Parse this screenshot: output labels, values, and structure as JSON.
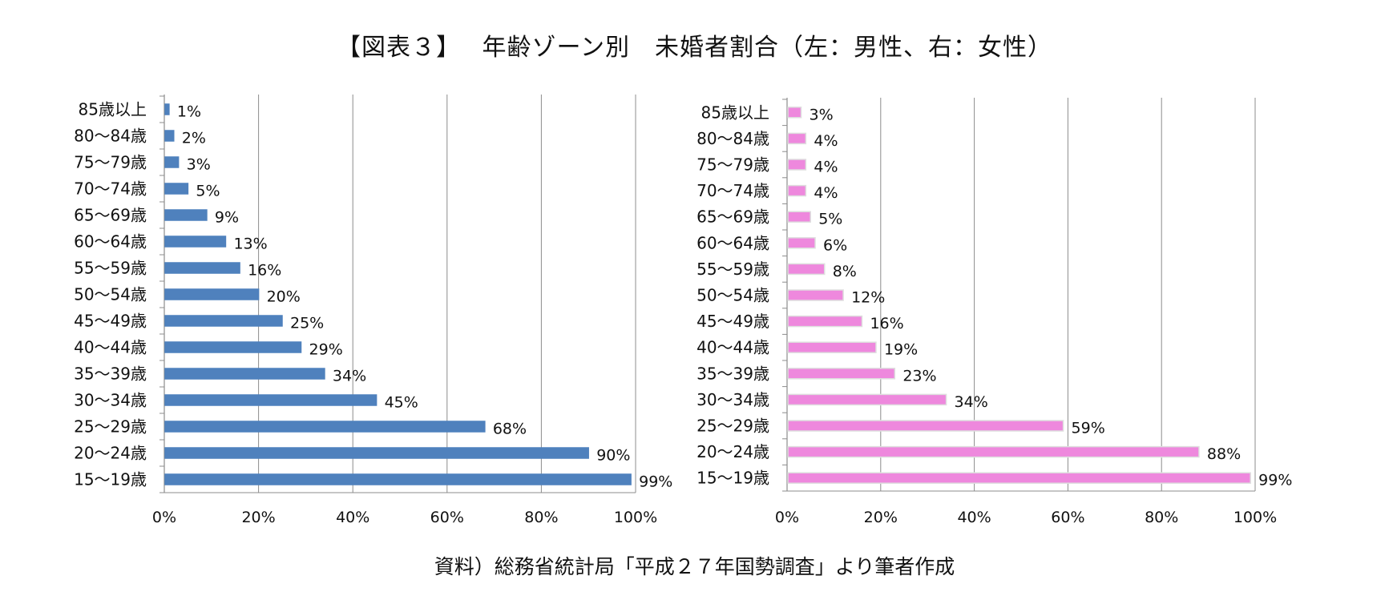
{
  "title": "【図表３】　 年齢ゾーン別　未婚者割合（左：男性、右：女性）",
  "source": "資料）総務省統計局「平成２７年国勢調査」より筆者作成",
  "chart_data": [
    {
      "type": "bar",
      "orientation": "horizontal",
      "categories": [
        "85歳以上",
        "80〜84歳",
        "75〜79歳",
        "70〜74歳",
        "65〜69歳",
        "60〜64歳",
        "55〜59歳",
        "50〜54歳",
        "45〜49歳",
        "40〜44歳",
        "35〜39歳",
        "30〜34歳",
        "25〜29歳",
        "20〜24歳",
        "15〜19歳"
      ],
      "values": [
        1,
        2,
        3,
        5,
        9,
        13,
        16,
        20,
        25,
        29,
        34,
        45,
        68,
        90,
        99
      ],
      "value_labels": [
        "1%",
        "2%",
        "3%",
        "5%",
        "9%",
        "13%",
        "16%",
        "20%",
        "25%",
        "29%",
        "34%",
        "45%",
        "68%",
        "90%",
        "99%"
      ],
      "xlim": [
        0,
        100
      ],
      "xticks": [
        "0%",
        "20%",
        "40%",
        "60%",
        "80%",
        "100%"
      ],
      "grid": true,
      "color": "#4f81bd",
      "bar_stroke": "#4f81bd"
    },
    {
      "type": "bar",
      "orientation": "horizontal",
      "categories": [
        "85歳以上",
        "80〜84歳",
        "75〜79歳",
        "70〜74歳",
        "65〜69歳",
        "60〜64歳",
        "55〜59歳",
        "50〜54歳",
        "45〜49歳",
        "40〜44歳",
        "35〜39歳",
        "30〜34歳",
        "25〜29歳",
        "20〜24歳",
        "15〜19歳"
      ],
      "values": [
        3,
        4,
        4,
        4,
        5,
        6,
        8,
        12,
        16,
        19,
        23,
        34,
        59,
        88,
        99
      ],
      "value_labels": [
        "3%",
        "4%",
        "4%",
        "4%",
        "5%",
        "6%",
        "8%",
        "12%",
        "16%",
        "19%",
        "23%",
        "34%",
        "59%",
        "88%",
        "99%"
      ],
      "xlim": [
        0,
        100
      ],
      "xticks": [
        "0%",
        "20%",
        "40%",
        "60%",
        "80%",
        "100%"
      ],
      "grid": true,
      "color": "#ee88dd",
      "bar_stroke": "#dedede"
    }
  ]
}
